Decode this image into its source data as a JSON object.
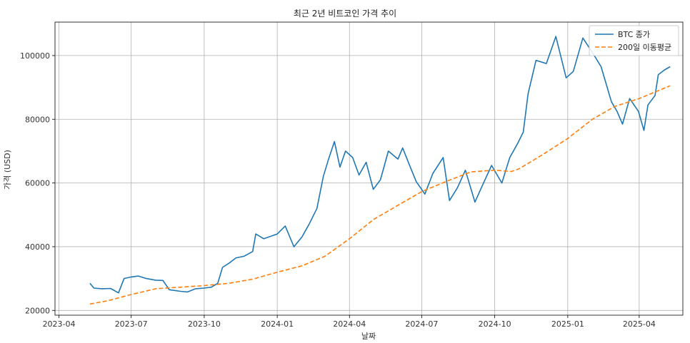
{
  "chart_data": {
    "type": "line",
    "title": "최근 2년 비트코인 가격 추이",
    "xlabel": "날짜",
    "ylabel": "가격 (USD)",
    "xlim": [
      "2023-03-27",
      "2025-05-26"
    ],
    "ylim": [
      18500,
      110500
    ],
    "grid": true,
    "legend_position": "top-right",
    "x_ticks": [
      {
        "date": "2023-04-01",
        "label": "2023-04"
      },
      {
        "date": "2023-07-01",
        "label": "2023-07"
      },
      {
        "date": "2023-10-01",
        "label": "2023-10"
      },
      {
        "date": "2024-01-01",
        "label": "2024-01"
      },
      {
        "date": "2024-04-01",
        "label": "2024-04"
      },
      {
        "date": "2024-07-01",
        "label": "2024-07"
      },
      {
        "date": "2024-10-01",
        "label": "2024-10"
      },
      {
        "date": "2025-01-01",
        "label": "2025-01"
      },
      {
        "date": "2025-04-01",
        "label": "2025-04"
      }
    ],
    "y_ticks": [
      {
        "value": 20000,
        "label": "20000"
      },
      {
        "value": 40000,
        "label": "40000"
      },
      {
        "value": 60000,
        "label": "60000"
      },
      {
        "value": 80000,
        "label": "80000"
      },
      {
        "value": 100000,
        "label": "100000"
      }
    ],
    "series": [
      {
        "name": "BTC 종가",
        "color": "#1f77b4",
        "style": "solid",
        "points": [
          [
            "2023-05-10",
            28500
          ],
          [
            "2023-05-15",
            27000
          ],
          [
            "2023-05-25",
            26800
          ],
          [
            "2023-06-05",
            26900
          ],
          [
            "2023-06-15",
            25500
          ],
          [
            "2023-06-22",
            30000
          ],
          [
            "2023-07-01",
            30500
          ],
          [
            "2023-07-10",
            30800
          ],
          [
            "2023-07-20",
            30000
          ],
          [
            "2023-08-01",
            29500
          ],
          [
            "2023-08-10",
            29400
          ],
          [
            "2023-08-18",
            26500
          ],
          [
            "2023-09-01",
            26000
          ],
          [
            "2023-09-10",
            25800
          ],
          [
            "2023-09-20",
            26800
          ],
          [
            "2023-10-01",
            27000
          ],
          [
            "2023-10-10",
            27300
          ],
          [
            "2023-10-18",
            28500
          ],
          [
            "2023-10-24",
            33500
          ],
          [
            "2023-11-01",
            34800
          ],
          [
            "2023-11-10",
            36500
          ],
          [
            "2023-11-20",
            37000
          ],
          [
            "2023-12-01",
            38500
          ],
          [
            "2023-12-05",
            44000
          ],
          [
            "2023-12-15",
            42500
          ],
          [
            "2024-01-01",
            44000
          ],
          [
            "2024-01-11",
            46500
          ],
          [
            "2024-01-22",
            40000
          ],
          [
            "2024-02-01",
            43000
          ],
          [
            "2024-02-10",
            47000
          ],
          [
            "2024-02-20",
            52000
          ],
          [
            "2024-02-28",
            62000
          ],
          [
            "2024-03-05",
            67000
          ],
          [
            "2024-03-13",
            73000
          ],
          [
            "2024-03-20",
            65000
          ],
          [
            "2024-03-27",
            70000
          ],
          [
            "2024-04-05",
            68000
          ],
          [
            "2024-04-13",
            62500
          ],
          [
            "2024-04-22",
            66500
          ],
          [
            "2024-05-01",
            58000
          ],
          [
            "2024-05-10",
            61000
          ],
          [
            "2024-05-20",
            70000
          ],
          [
            "2024-06-01",
            67500
          ],
          [
            "2024-06-07",
            71000
          ],
          [
            "2024-06-15",
            66000
          ],
          [
            "2024-06-24",
            60500
          ],
          [
            "2024-07-05",
            56500
          ],
          [
            "2024-07-15",
            63000
          ],
          [
            "2024-07-28",
            68000
          ],
          [
            "2024-08-05",
            54500
          ],
          [
            "2024-08-15",
            58500
          ],
          [
            "2024-08-25",
            64000
          ],
          [
            "2024-09-06",
            54000
          ],
          [
            "2024-09-15",
            59000
          ],
          [
            "2024-09-27",
            65500
          ],
          [
            "2024-10-10",
            60000
          ],
          [
            "2024-10-20",
            68000
          ],
          [
            "2024-10-30",
            72500
          ],
          [
            "2024-11-06",
            76000
          ],
          [
            "2024-11-12",
            88000
          ],
          [
            "2024-11-22",
            98500
          ],
          [
            "2024-12-05",
            97500
          ],
          [
            "2024-12-17",
            106000
          ],
          [
            "2024-12-30",
            93000
          ],
          [
            "2025-01-08",
            95000
          ],
          [
            "2025-01-20",
            105500
          ],
          [
            "2025-02-01",
            101000
          ],
          [
            "2025-02-12",
            96500
          ],
          [
            "2025-02-25",
            85500
          ],
          [
            "2025-03-04",
            82500
          ],
          [
            "2025-03-11",
            78500
          ],
          [
            "2025-03-20",
            86500
          ],
          [
            "2025-03-31",
            82500
          ],
          [
            "2025-04-07",
            76500
          ],
          [
            "2025-04-12",
            84500
          ],
          [
            "2025-04-21",
            87500
          ],
          [
            "2025-04-25",
            94000
          ],
          [
            "2025-05-03",
            95500
          ],
          [
            "2025-05-10",
            96500
          ]
        ]
      },
      {
        "name": "200일 이동평균",
        "color": "#ff7f0e",
        "style": "dashed",
        "points": [
          [
            "2023-05-10",
            22000
          ],
          [
            "2023-06-01",
            23000
          ],
          [
            "2023-07-01",
            25000
          ],
          [
            "2023-08-01",
            26800
          ],
          [
            "2023-09-01",
            27300
          ],
          [
            "2023-10-01",
            27800
          ],
          [
            "2023-11-01",
            28500
          ],
          [
            "2023-12-01",
            29800
          ],
          [
            "2024-01-01",
            32000
          ],
          [
            "2024-02-01",
            34000
          ],
          [
            "2024-03-01",
            37000
          ],
          [
            "2024-04-01",
            42500
          ],
          [
            "2024-05-01",
            48500
          ],
          [
            "2024-06-01",
            53000
          ],
          [
            "2024-07-01",
            57300
          ],
          [
            "2024-08-01",
            60500
          ],
          [
            "2024-09-01",
            63500
          ],
          [
            "2024-10-01",
            64000
          ],
          [
            "2024-10-22",
            63600
          ],
          [
            "2024-11-01",
            64500
          ],
          [
            "2024-12-01",
            69000
          ],
          [
            "2025-01-01",
            74000
          ],
          [
            "2025-02-01",
            80000
          ],
          [
            "2025-03-01",
            84000
          ],
          [
            "2025-04-01",
            86500
          ],
          [
            "2025-05-10",
            90500
          ]
        ]
      }
    ]
  }
}
